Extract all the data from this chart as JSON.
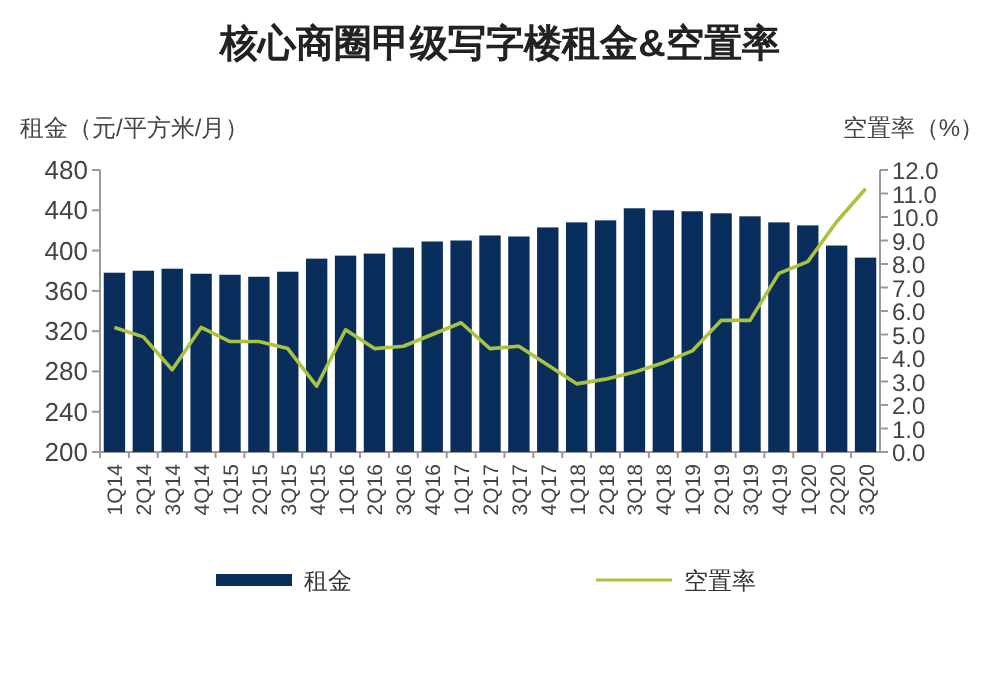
{
  "chart_data": {
    "type": "bar",
    "title": "核心商圈甲级写字楼租金&空置率",
    "ylabel": "租金（元/平方米/月）",
    "y2label": "空置率（%）",
    "categories": [
      "1Q14",
      "2Q14",
      "3Q14",
      "4Q14",
      "1Q15",
      "2Q15",
      "3Q15",
      "4Q15",
      "1Q16",
      "2Q16",
      "3Q16",
      "4Q16",
      "1Q17",
      "2Q17",
      "3Q17",
      "4Q17",
      "1Q18",
      "2Q18",
      "3Q18",
      "4Q18",
      "1Q19",
      "2Q19",
      "3Q19",
      "4Q19",
      "1Q20",
      "2Q20",
      "3Q20"
    ],
    "series": [
      {
        "name": "租金",
        "color": "#0a2e5c",
        "values": [
          378,
          380,
          382,
          377,
          376,
          374,
          379,
          392,
          395,
          397,
          403,
          409,
          410,
          415,
          414,
          423,
          428,
          430,
          442,
          440,
          439,
          437,
          434,
          428,
          425,
          405,
          393
        ]
      },
      {
        "name": "空置率",
        "type": "line",
        "axis": "y2",
        "color": "#a9c23f",
        "values": [
          5.3,
          4.9,
          3.5,
          5.3,
          4.7,
          4.7,
          4.4,
          2.8,
          5.2,
          4.4,
          4.5,
          5.0,
          5.5,
          4.4,
          4.5,
          3.7,
          2.9,
          3.1,
          3.4,
          3.8,
          4.3,
          5.6,
          5.6,
          7.6,
          8.1,
          9.8,
          11.2
        ]
      }
    ],
    "ylim": [
      200,
      480
    ],
    "yticks": [
      200,
      240,
      280,
      320,
      360,
      400,
      440,
      480
    ],
    "y2lim": [
      0,
      12
    ],
    "y2ticks": [
      {
        "value": 0,
        "label": "0.0"
      },
      {
        "value": 1,
        "label": "1.0"
      },
      {
        "value": 2,
        "label": "2.0"
      },
      {
        "value": 3,
        "label": "3.0"
      },
      {
        "value": 4,
        "label": "4.0"
      },
      {
        "value": 5,
        "label": "5.0"
      },
      {
        "value": 6,
        "label": "6.0"
      },
      {
        "value": 7,
        "label": "7.0"
      },
      {
        "value": 8,
        "label": "8.0"
      },
      {
        "value": 9,
        "label": "9.0"
      },
      {
        "value": 10,
        "label": "10.0"
      },
      {
        "value": 11,
        "label": "11.0"
      },
      {
        "value": 12,
        "label": "12.0"
      }
    ],
    "legend": "bottom",
    "grid": false,
    "marker": "none",
    "line_style": "solid"
  }
}
